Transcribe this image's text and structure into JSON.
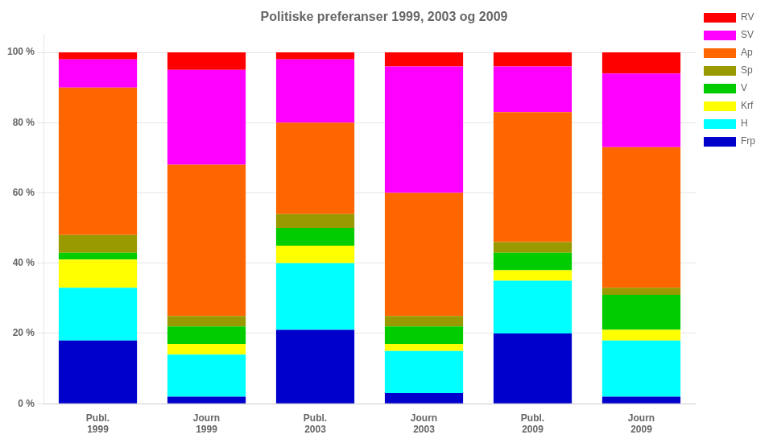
{
  "chart_data": {
    "type": "bar",
    "title": "Politiske preferanser 1999, 2003 og 2009",
    "categories": [
      "Publ.\n1999",
      "Journ\n1999",
      "Publ.\n2003",
      "Journ\n2003",
      "Publ.\n2009",
      "Journ\n2009"
    ],
    "series": [
      {
        "name": "Frp",
        "color": "#0000CC",
        "values": [
          18,
          2,
          21,
          3,
          20,
          2
        ]
      },
      {
        "name": "H",
        "color": "#00FFFF",
        "values": [
          15,
          12,
          19,
          12,
          15,
          16
        ]
      },
      {
        "name": "Krf",
        "color": "#FFFF00",
        "values": [
          8,
          3,
          5,
          2,
          3,
          3
        ]
      },
      {
        "name": "V",
        "color": "#00CC00",
        "values": [
          2,
          5,
          5,
          5,
          5,
          10
        ]
      },
      {
        "name": "Sp",
        "color": "#999900",
        "values": [
          5,
          3,
          4,
          3,
          3,
          2
        ]
      },
      {
        "name": "Ap",
        "color": "#FF6600",
        "values": [
          42,
          43,
          26,
          35,
          37,
          40
        ]
      },
      {
        "name": "SV",
        "color": "#FF00FF",
        "values": [
          8,
          27,
          18,
          36,
          13,
          21
        ]
      },
      {
        "name": "RV",
        "color": "#FF0000",
        "values": [
          2,
          5,
          2,
          4,
          4,
          6
        ]
      }
    ],
    "stacked": true,
    "ylim": [
      0,
      105
    ],
    "yticks": [
      {
        "value": 0,
        "label": "0 %"
      },
      {
        "value": 20,
        "label": "20 %"
      },
      {
        "value": 40,
        "label": "40 %"
      },
      {
        "value": 60,
        "label": "60 %"
      },
      {
        "value": 80,
        "label": "80 %"
      },
      {
        "value": 100,
        "label": "100 %"
      }
    ],
    "grid": true,
    "legend": "upper right"
  }
}
